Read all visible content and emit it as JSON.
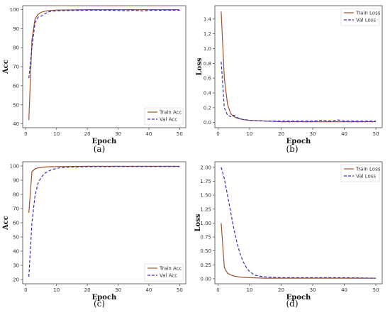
{
  "chart_data": [
    {
      "type": "line",
      "caption": "(a)",
      "xlabel": "Epoch",
      "ylabel": "Acc",
      "xlim": [
        -1,
        52
      ],
      "ylim": [
        38,
        102
      ],
      "xticks": [
        0,
        10,
        20,
        30,
        40,
        50
      ],
      "yticks": [
        40,
        50,
        60,
        70,
        80,
        90,
        100
      ],
      "legend_position": "bottom-right",
      "series": [
        {
          "name": "Train Acc",
          "color": "#a0522d",
          "dash": "solid",
          "x": [
            1,
            2,
            3,
            4,
            5,
            6,
            7,
            8,
            10,
            15,
            20,
            25,
            30,
            35,
            40,
            45,
            50
          ],
          "y": [
            42,
            84,
            95,
            97.5,
            98.5,
            99,
            99.3,
            99.5,
            99.7,
            99.8,
            99.9,
            99.9,
            99.9,
            99.9,
            99.9,
            99.9,
            99.9
          ]
        },
        {
          "name": "Val Acc",
          "color": "#3030c0",
          "dash": "dashed",
          "x": [
            1,
            2,
            3,
            4,
            5,
            6,
            7,
            8,
            10,
            15,
            20,
            25,
            30,
            33,
            35,
            38,
            40,
            45,
            50
          ],
          "y": [
            64,
            80,
            93,
            96,
            96.5,
            97.5,
            98.5,
            99,
            99.3,
            99.5,
            99.6,
            99.6,
            99.5,
            99.3,
            99.6,
            99.2,
            99.5,
            99.6,
            99.6
          ]
        }
      ]
    },
    {
      "type": "line",
      "caption": "(b)",
      "xlabel": "Epoch",
      "ylabel": "Loss",
      "xlim": [
        -1,
        52
      ],
      "ylim": [
        -0.07,
        1.58
      ],
      "xticks": [
        0,
        10,
        20,
        30,
        40,
        50
      ],
      "yticks": [
        0.0,
        0.2,
        0.4,
        0.6,
        0.8,
        1.0,
        1.2,
        1.4
      ],
      "yticklabels": [
        "0.0",
        "0.2",
        "0.4",
        "0.6",
        "0.8",
        "1.0",
        "1.2",
        "1.4"
      ],
      "legend_position": "top-right",
      "series": [
        {
          "name": "Train Loss",
          "color": "#a0522d",
          "dash": "solid",
          "x": [
            1,
            2,
            3,
            4,
            5,
            6,
            7,
            8,
            10,
            15,
            20,
            30,
            40,
            50
          ],
          "y": [
            1.5,
            0.6,
            0.25,
            0.12,
            0.08,
            0.06,
            0.05,
            0.04,
            0.03,
            0.02,
            0.01,
            0.01,
            0.01,
            0.01
          ]
        },
        {
          "name": "Val Loss",
          "color": "#3030c0",
          "dash": "dashed",
          "x": [
            1,
            2,
            3,
            4,
            5,
            6,
            7,
            8,
            10,
            15,
            20,
            30,
            33,
            36,
            38,
            40,
            45,
            50
          ],
          "y": [
            0.82,
            0.2,
            0.1,
            0.08,
            0.1,
            0.07,
            0.05,
            0.04,
            0.03,
            0.02,
            0.02,
            0.02,
            0.03,
            0.02,
            0.035,
            0.02,
            0.02,
            0.02
          ]
        }
      ]
    },
    {
      "type": "line",
      "caption": "(c)",
      "xlabel": "Epoch",
      "ylabel": "Acc",
      "xlim": [
        -1,
        52
      ],
      "ylim": [
        17,
        103
      ],
      "xticks": [
        0,
        10,
        20,
        30,
        40,
        50
      ],
      "yticks": [
        20,
        30,
        40,
        50,
        60,
        70,
        80,
        90,
        100
      ],
      "legend_position": "bottom-right",
      "series": [
        {
          "name": "Train Acc",
          "color": "#a0522d",
          "dash": "solid",
          "x": [
            1,
            2,
            3,
            4,
            5,
            6,
            8,
            10,
            15,
            20,
            30,
            40,
            50
          ],
          "y": [
            67,
            96,
            98,
            98.7,
            99,
            99.3,
            99.5,
            99.6,
            99.7,
            99.8,
            99.8,
            99.8,
            99.8
          ]
        },
        {
          "name": "Val Acc",
          "color": "#3030c0",
          "dash": "dashed",
          "x": [
            1,
            2,
            3,
            4,
            5,
            6,
            7,
            8,
            9,
            10,
            12,
            15,
            20,
            30,
            40,
            50
          ],
          "y": [
            22,
            60,
            79,
            88,
            92,
            94.5,
            96,
            97,
            97.8,
            98.3,
            99,
            99.3,
            99.5,
            99.6,
            99.6,
            99.6
          ]
        }
      ]
    },
    {
      "type": "line",
      "caption": "(d)",
      "xlabel": "Epoch",
      "ylabel": "Loss",
      "xlim": [
        -1,
        52
      ],
      "ylim": [
        -0.09,
        2.1
      ],
      "xticks": [
        0,
        10,
        20,
        30,
        40,
        50
      ],
      "yticks": [
        0.0,
        0.25,
        0.5,
        0.75,
        1.0,
        1.25,
        1.5,
        1.75,
        2.0
      ],
      "yticklabels": [
        "0.00",
        "0.25",
        "0.50",
        "0.75",
        "1.00",
        "1.25",
        "1.50",
        "1.75",
        "2.00"
      ],
      "legend_position": "top-right",
      "series": [
        {
          "name": "Train Loss",
          "color": "#a0522d",
          "dash": "solid",
          "x": [
            1,
            2,
            3,
            4,
            5,
            6,
            7,
            8,
            10,
            15,
            20,
            30,
            40,
            50
          ],
          "y": [
            1.0,
            0.2,
            0.1,
            0.07,
            0.05,
            0.04,
            0.03,
            0.025,
            0.02,
            0.01,
            0.01,
            0.01,
            0.01,
            0.01
          ]
        },
        {
          "name": "Val Loss",
          "color": "#3030c0",
          "dash": "dashed",
          "x": [
            1,
            2,
            3,
            4,
            5,
            6,
            7,
            8,
            9,
            10,
            11,
            12,
            14,
            16,
            20,
            30,
            40,
            50
          ],
          "y": [
            2.0,
            1.8,
            1.5,
            1.2,
            0.9,
            0.65,
            0.45,
            0.3,
            0.2,
            0.13,
            0.09,
            0.06,
            0.04,
            0.03,
            0.02,
            0.02,
            0.02,
            0.01
          ]
        }
      ]
    }
  ]
}
